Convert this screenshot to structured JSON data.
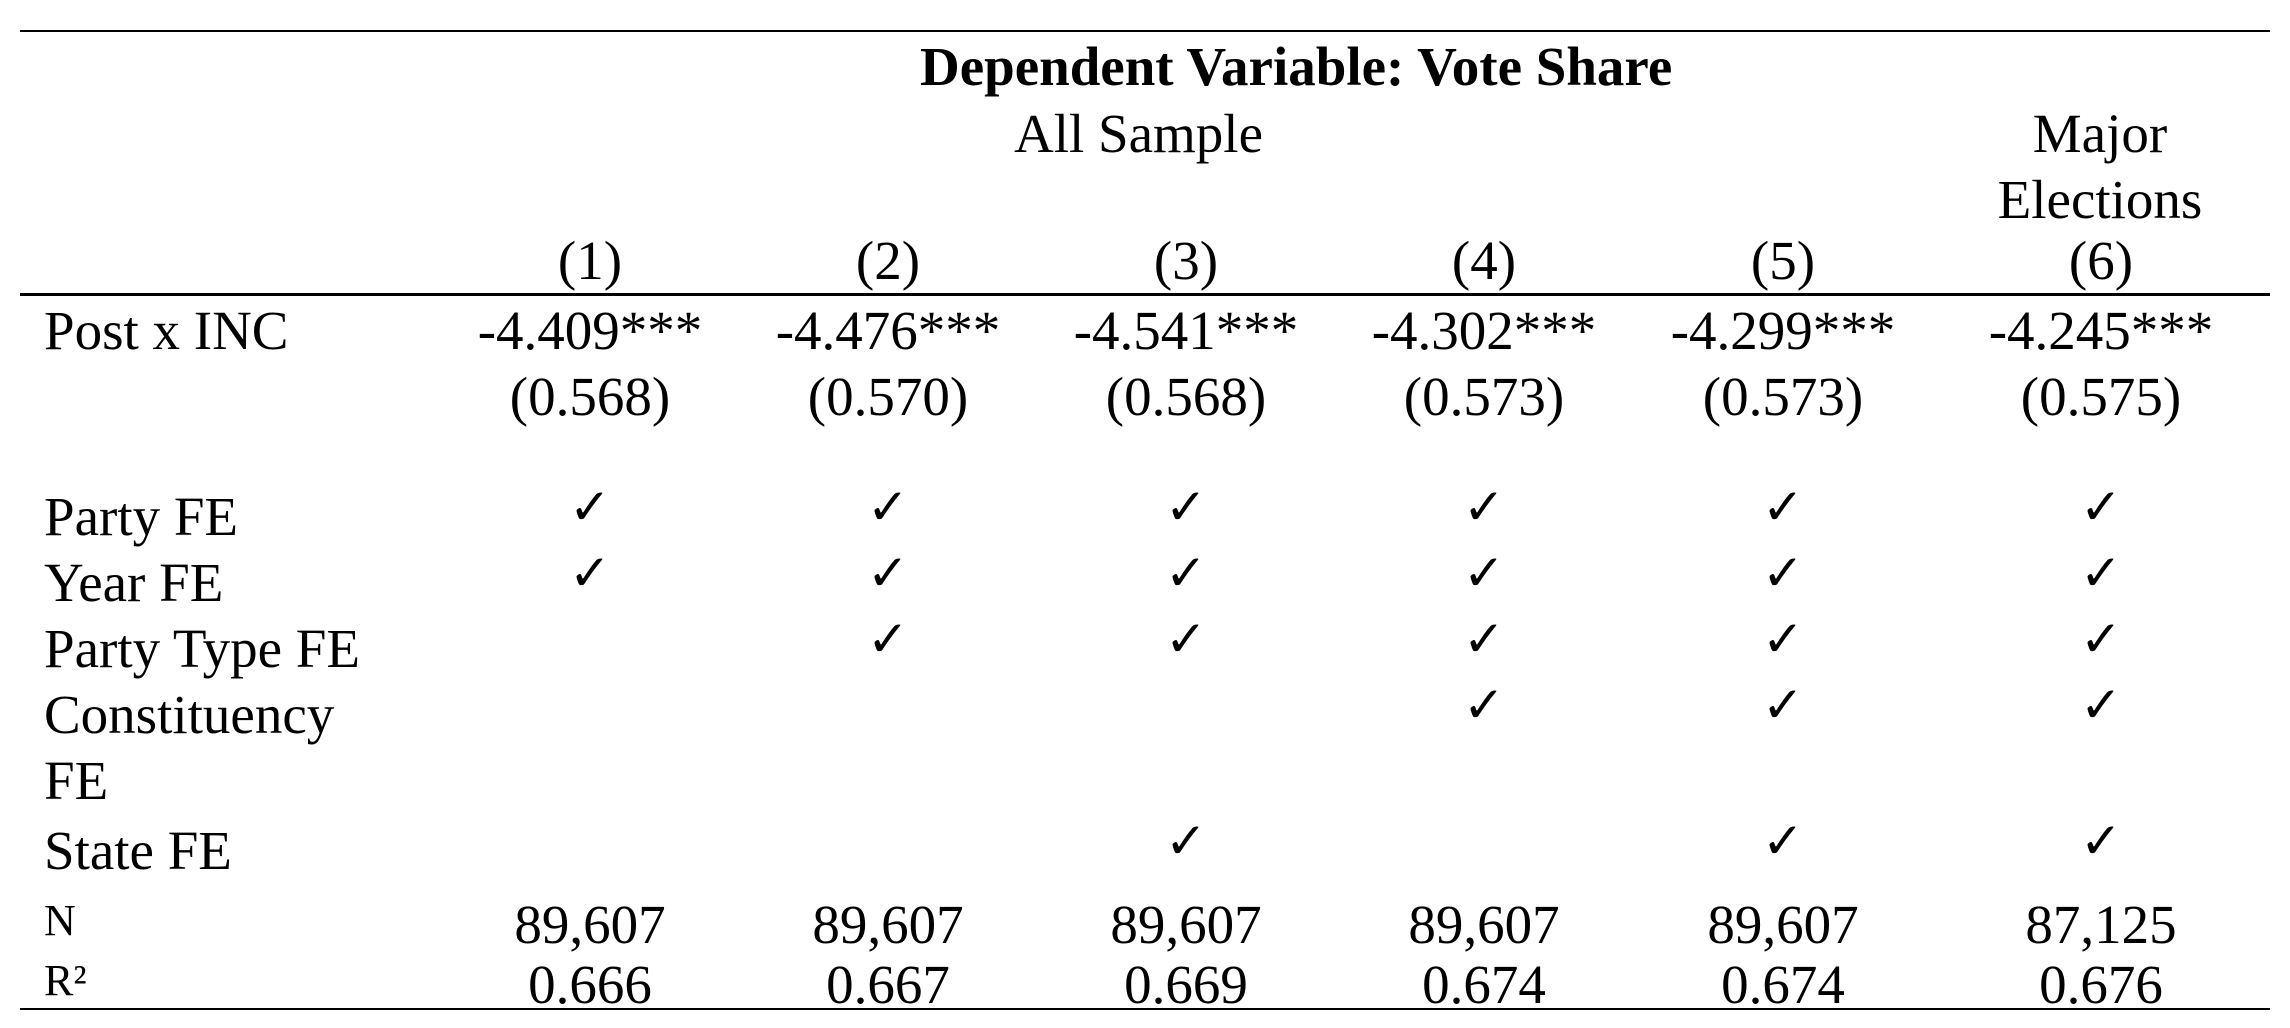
{
  "table": {
    "dependent_variable": "Dependent Variable: Vote Share",
    "group_all_sample": "All Sample",
    "group_major_elections": "Major Elections",
    "columns": [
      "(1)",
      "(2)",
      "(3)",
      "(4)",
      "(5)",
      "(6)"
    ],
    "coef_row": {
      "label": "Post x INC",
      "estimates": [
        "-4.409***",
        "-4.476***",
        "-4.541***",
        "-4.302***",
        "-4.299***",
        "-4.245***"
      ],
      "std_errors": [
        "(0.568)",
        "(0.570)",
        "(0.568)",
        "(0.573)",
        "(0.573)",
        "(0.575)"
      ]
    },
    "fe_rows": [
      {
        "label": "Party FE",
        "checks": [
          true,
          true,
          true,
          true,
          true,
          true
        ]
      },
      {
        "label": "Year FE",
        "checks": [
          true,
          true,
          true,
          true,
          true,
          true
        ]
      },
      {
        "label": "Party Type FE",
        "checks": [
          false,
          true,
          true,
          true,
          true,
          true
        ]
      },
      {
        "label": "Constituency FE",
        "checks": [
          false,
          false,
          false,
          true,
          true,
          true
        ]
      },
      {
        "label": "State FE",
        "checks": [
          false,
          false,
          true,
          false,
          true,
          true
        ]
      }
    ],
    "check_symbol": "✓",
    "n_row": {
      "label": "N",
      "values": [
        "89,607",
        "89,607",
        "89,607",
        "89,607",
        "89,607",
        "87,125"
      ]
    },
    "r2_row": {
      "label": "R²",
      "values": [
        "0.666",
        "0.667",
        "0.669",
        "0.674",
        "0.674",
        "0.676"
      ]
    }
  }
}
